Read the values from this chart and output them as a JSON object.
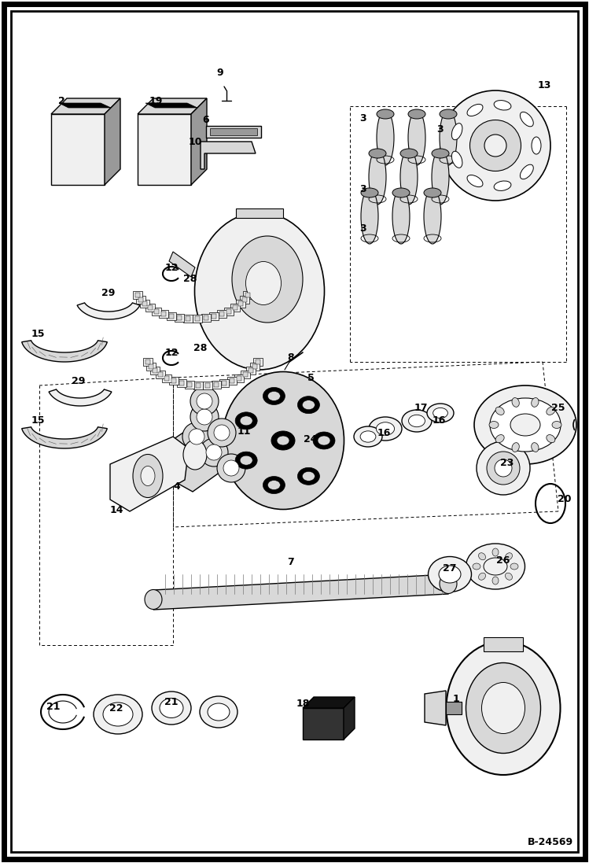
{
  "bg_color": "#ffffff",
  "fig_width": 7.49,
  "fig_height": 10.97,
  "dpi": 100,
  "watermark": "B-24569",
  "lc": "#000000",
  "fc_light": "#f0f0f0",
  "fc_mid": "#d8d8d8",
  "fc_dark": "#999999",
  "fc_black": "#111111"
}
